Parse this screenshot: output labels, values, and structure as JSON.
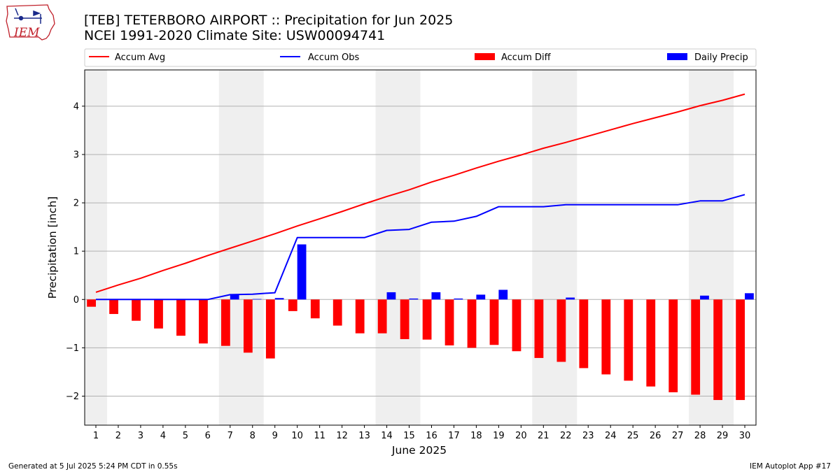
{
  "header": {
    "title_line1": "[TEB] TETERBORO AIRPORT :: Precipitation for Jun 2025",
    "title_line2": "NCEI 1991-2020 Climate Site: USW00094741"
  },
  "logo": {
    "text": "IEM",
    "icon": "iowa-state-outline-logo"
  },
  "footer": {
    "left": "Generated at 5 Jul 2025 5:24 PM CDT in 0.55s",
    "right": "IEM Autoplot App #17"
  },
  "colors": {
    "avg": "#ff0000",
    "obs": "#0000ff",
    "diff": "#ff0000",
    "daily": "#0000ff",
    "weekend": "#efefef",
    "grid": "#b0b0b0"
  },
  "chart_data": {
    "type": "bar",
    "title": "[TEB] TETERBORO AIRPORT :: Precipitation for Jun 2025",
    "subtitle": "NCEI 1991-2020 Climate Site: USW00094741",
    "xlabel": "June 2025",
    "ylabel": "Precipitation [inch]",
    "xlim": [
      0.5,
      30.5
    ],
    "ylim": [
      -2.6,
      4.75
    ],
    "yticks": [
      -2,
      -1,
      0,
      1,
      2,
      3,
      4
    ],
    "ytick_labels": [
      "−2",
      "−1",
      "0",
      "1",
      "2",
      "3",
      "4"
    ],
    "grid": "y",
    "legend_placement": "top",
    "weekend_days": [
      1,
      7,
      8,
      14,
      15,
      21,
      22,
      28,
      29
    ],
    "days": [
      1,
      2,
      3,
      4,
      5,
      6,
      7,
      8,
      9,
      10,
      11,
      12,
      13,
      14,
      15,
      16,
      17,
      18,
      19,
      20,
      21,
      22,
      23,
      24,
      25,
      26,
      27,
      28,
      29,
      30
    ],
    "series": [
      {
        "name": "Accum Avg",
        "kind": "line",
        "values": [
          0.15,
          0.3,
          0.44,
          0.6,
          0.75,
          0.91,
          1.06,
          1.21,
          1.36,
          1.52,
          1.67,
          1.82,
          1.98,
          2.13,
          2.27,
          2.43,
          2.57,
          2.72,
          2.86,
          2.99,
          3.13,
          3.25,
          3.38,
          3.51,
          3.64,
          3.76,
          3.88,
          4.01,
          4.12,
          4.25
        ]
      },
      {
        "name": "Accum Obs",
        "kind": "line",
        "values": [
          0,
          0,
          0,
          0,
          0,
          0,
          0.1,
          0.11,
          0.14,
          1.28,
          1.28,
          1.28,
          1.28,
          1.43,
          1.45,
          1.6,
          1.62,
          1.72,
          1.92,
          1.92,
          1.92,
          1.96,
          1.96,
          1.96,
          1.96,
          1.96,
          1.96,
          2.04,
          2.04,
          2.17
        ]
      },
      {
        "name": "Accum Diff",
        "kind": "bar",
        "values": [
          -0.15,
          -0.3,
          -0.44,
          -0.6,
          -0.75,
          -0.91,
          -0.96,
          -1.1,
          -1.22,
          -0.24,
          -0.39,
          -0.54,
          -0.7,
          -0.7,
          -0.82,
          -0.83,
          -0.95,
          -1.0,
          -0.94,
          -1.07,
          -1.21,
          -1.29,
          -1.42,
          -1.55,
          -1.68,
          -1.8,
          -1.92,
          -1.97,
          -2.08,
          -2.08
        ]
      },
      {
        "name": "Daily Precip",
        "kind": "bar",
        "values": [
          0,
          0,
          0,
          0,
          0,
          0,
          0.1,
          0.01,
          0.03,
          1.14,
          0,
          0,
          0,
          0.15,
          0.02,
          0.15,
          0.02,
          0.1,
          0.2,
          0,
          0,
          0.04,
          0,
          0,
          0,
          0,
          0,
          0.08,
          0,
          0.13
        ]
      }
    ]
  }
}
